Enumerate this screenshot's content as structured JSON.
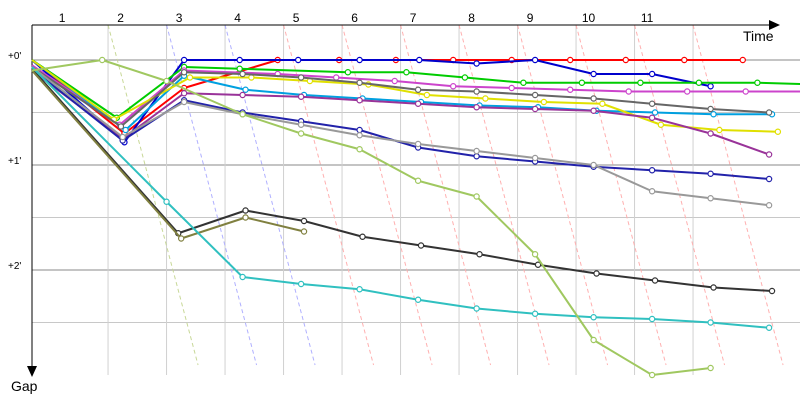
{
  "chart_data": {
    "type": "line",
    "title": "",
    "xlabel": "Time",
    "ylabel": "Gap",
    "x_categories": [
      "1",
      "2",
      "3",
      "4",
      "5",
      "6",
      "7",
      "8",
      "9",
      "10",
      "11"
    ],
    "y_ticks": [
      {
        "label": "+0'",
        "value": 0
      },
      {
        "label": "+1'",
        "value": 60
      },
      {
        "label": "+2'",
        "value": 120
      }
    ],
    "ylim": [
      0,
      180
    ],
    "grid": true,
    "series": [
      {
        "color": "#ff0000",
        "points": [
          [
            0,
            0
          ],
          [
            1.58,
            42
          ],
          [
            2.6,
            16
          ],
          [
            4.2,
            0
          ],
          [
            5.25,
            0
          ],
          [
            6.22,
            0
          ],
          [
            7.2,
            0
          ],
          [
            8.2,
            0
          ],
          [
            9.2,
            0
          ],
          [
            10.15,
            0
          ],
          [
            11.15,
            0
          ],
          [
            12.15,
            0
          ]
        ]
      },
      {
        "color": "#0000cc",
        "points": [
          [
            0,
            0
          ],
          [
            1.58,
            47
          ],
          [
            2.6,
            0
          ],
          [
            3.55,
            0
          ],
          [
            4.55,
            0
          ],
          [
            5.6,
            0
          ],
          [
            6.62,
            0
          ],
          [
            7.6,
            2
          ],
          [
            8.6,
            0
          ],
          [
            9.6,
            8
          ],
          [
            10.6,
            8
          ],
          [
            11.6,
            15
          ]
        ]
      },
      {
        "color": "#00cc00",
        "points": [
          [
            0,
            0
          ],
          [
            1.45,
            33
          ],
          [
            2.6,
            4
          ],
          [
            3.55,
            5
          ],
          [
            5.4,
            7
          ],
          [
            6.4,
            7
          ],
          [
            7.4,
            10
          ],
          [
            8.4,
            13
          ],
          [
            9.4,
            13
          ],
          [
            10.4,
            13
          ],
          [
            11.4,
            13
          ],
          [
            12.4,
            13
          ],
          [
            13.4,
            14
          ]
        ]
      },
      {
        "color": "#cc44cc",
        "points": [
          [
            0,
            3
          ],
          [
            1.5,
            37
          ],
          [
            2.6,
            6
          ],
          [
            4.2,
            8
          ],
          [
            5.2,
            10
          ],
          [
            6.2,
            12
          ],
          [
            7.2,
            15
          ],
          [
            8.2,
            16
          ],
          [
            9.2,
            17
          ],
          [
            10.2,
            18
          ],
          [
            11.2,
            18
          ],
          [
            12.2,
            18
          ],
          [
            13.3,
            18
          ]
        ]
      },
      {
        "color": "#00a0e0",
        "points": [
          [
            0,
            0
          ],
          [
            1.6,
            40
          ],
          [
            2.6,
            9
          ],
          [
            3.65,
            17
          ],
          [
            4.65,
            20
          ],
          [
            5.65,
            22
          ],
          [
            6.65,
            24
          ],
          [
            7.65,
            26
          ],
          [
            8.65,
            27
          ],
          [
            9.65,
            29
          ],
          [
            10.65,
            30
          ],
          [
            11.65,
            31
          ],
          [
            12.65,
            31
          ]
        ]
      },
      {
        "color": "#e0e000",
        "points": [
          [
            0,
            0
          ],
          [
            1.4,
            34
          ],
          [
            2.7,
            10
          ],
          [
            3.75,
            10
          ],
          [
            4.75,
            12
          ],
          [
            5.75,
            14
          ],
          [
            6.75,
            20
          ],
          [
            7.75,
            22
          ],
          [
            8.75,
            24
          ],
          [
            9.75,
            25
          ],
          [
            10.75,
            37
          ],
          [
            11.75,
            40
          ],
          [
            12.75,
            41
          ]
        ]
      },
      {
        "color": "#666666",
        "points": [
          [
            0,
            4
          ],
          [
            1.52,
            38
          ],
          [
            2.6,
            7
          ],
          [
            3.6,
            8
          ],
          [
            4.6,
            10
          ],
          [
            5.6,
            13
          ],
          [
            6.6,
            17
          ],
          [
            7.6,
            18
          ],
          [
            8.6,
            20
          ],
          [
            9.6,
            22
          ],
          [
            10.6,
            25
          ],
          [
            11.6,
            28
          ],
          [
            12.6,
            30
          ]
        ]
      },
      {
        "color": "#993399",
        "points": [
          [
            0,
            6
          ],
          [
            1.55,
            45
          ],
          [
            2.6,
            19
          ],
          [
            3.6,
            20
          ],
          [
            4.6,
            21
          ],
          [
            5.6,
            23
          ],
          [
            6.6,
            25
          ],
          [
            7.6,
            27
          ],
          [
            8.6,
            28
          ],
          [
            9.6,
            29
          ],
          [
            10.6,
            33
          ],
          [
            11.6,
            42
          ],
          [
            12.6,
            54
          ]
        ]
      },
      {
        "color": "#2222aa",
        "points": [
          [
            0,
            5
          ],
          [
            1.55,
            46
          ],
          [
            2.6,
            23
          ],
          [
            3.6,
            30
          ],
          [
            4.6,
            35
          ],
          [
            5.6,
            40
          ],
          [
            6.6,
            50
          ],
          [
            7.6,
            55
          ],
          [
            8.6,
            58
          ],
          [
            9.6,
            61
          ],
          [
            10.6,
            63
          ],
          [
            11.6,
            65
          ],
          [
            12.6,
            68
          ]
        ]
      },
      {
        "color": "#999999",
        "points": [
          [
            0,
            4
          ],
          [
            1.55,
            44
          ],
          [
            2.6,
            24
          ],
          [
            3.6,
            31
          ],
          [
            4.6,
            37
          ],
          [
            5.6,
            43
          ],
          [
            6.6,
            48
          ],
          [
            7.6,
            52
          ],
          [
            8.6,
            56
          ],
          [
            9.6,
            60
          ],
          [
            10.6,
            75
          ],
          [
            11.6,
            79
          ],
          [
            12.6,
            83
          ]
        ]
      },
      {
        "color": "#333333",
        "points": [
          [
            0,
            5
          ],
          [
            2.5,
            99
          ],
          [
            3.65,
            86
          ],
          [
            4.65,
            92
          ],
          [
            5.65,
            101
          ],
          [
            6.65,
            106
          ],
          [
            7.65,
            111
          ],
          [
            8.65,
            117
          ],
          [
            9.65,
            122
          ],
          [
            10.65,
            126
          ],
          [
            11.65,
            130
          ],
          [
            12.65,
            132
          ]
        ]
      },
      {
        "color": "#808040",
        "points": [
          [
            0,
            6
          ],
          [
            2.55,
            102
          ],
          [
            3.65,
            90
          ],
          [
            4.65,
            98
          ]
        ]
      },
      {
        "color": "#30c0c0",
        "points": [
          [
            0,
            4
          ],
          [
            2.3,
            81
          ],
          [
            3.6,
            124
          ],
          [
            4.6,
            128
          ],
          [
            5.6,
            131
          ],
          [
            6.6,
            137
          ],
          [
            7.6,
            142
          ],
          [
            8.6,
            145
          ],
          [
            9.6,
            147
          ],
          [
            10.6,
            148
          ],
          [
            11.6,
            150
          ],
          [
            12.6,
            153
          ]
        ]
      },
      {
        "color": "#a0c860",
        "points": [
          [
            0,
            6
          ],
          [
            1.2,
            0
          ],
          [
            2.3,
            12
          ],
          [
            3.6,
            31
          ],
          [
            4.6,
            42
          ],
          [
            5.6,
            51
          ],
          [
            6.6,
            69
          ],
          [
            7.6,
            78
          ],
          [
            8.6,
            111
          ],
          [
            9.6,
            160
          ],
          [
            10.6,
            180
          ],
          [
            11.6,
            176
          ]
        ]
      }
    ]
  }
}
